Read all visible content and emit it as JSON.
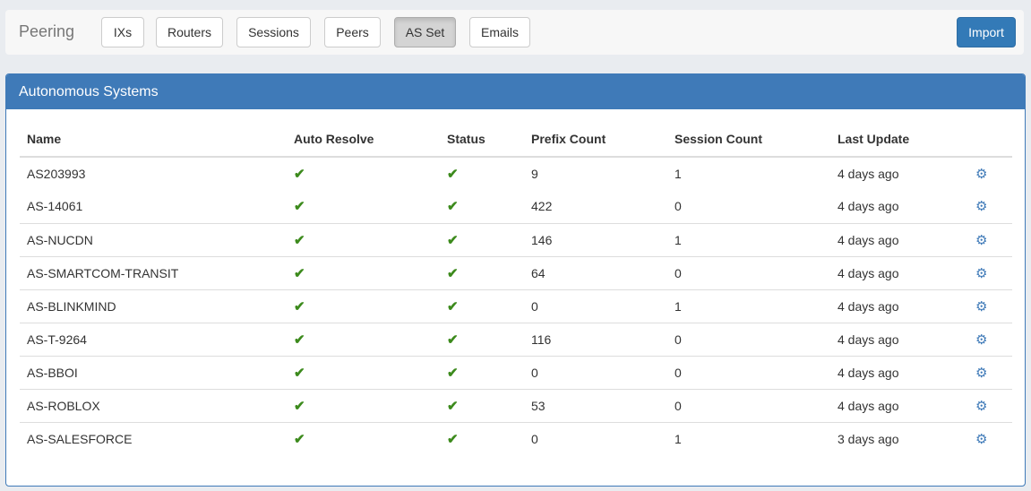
{
  "navbar": {
    "brand": "Peering",
    "buttons": [
      {
        "label": "IXs"
      },
      {
        "label": "Routers"
      },
      {
        "label": "Sessions"
      },
      {
        "label": "Peers"
      },
      {
        "label": "AS Set",
        "active": true
      },
      {
        "label": "Emails"
      }
    ],
    "import_label": "Import"
  },
  "panel": {
    "title": "Autonomous Systems",
    "columns": [
      "Name",
      "Auto Resolve",
      "Status",
      "Prefix Count",
      "Session Count",
      "Last Update"
    ],
    "rows": [
      {
        "name": "AS203993",
        "auto_resolve": true,
        "status": true,
        "prefix_count": "9",
        "session_count": "1",
        "last_update": "4 days ago"
      },
      {
        "name": "AS-14061",
        "auto_resolve": true,
        "status": true,
        "prefix_count": "422",
        "session_count": "0",
        "last_update": "4 days ago"
      },
      {
        "name": "AS-NUCDN",
        "auto_resolve": true,
        "status": true,
        "prefix_count": "146",
        "session_count": "1",
        "last_update": "4 days ago"
      },
      {
        "name": "AS-SMARTCOM-TRANSIT",
        "auto_resolve": true,
        "status": true,
        "prefix_count": "64",
        "session_count": "0",
        "last_update": "4 days ago"
      },
      {
        "name": "AS-BLINKMIND",
        "auto_resolve": true,
        "status": true,
        "prefix_count": "0",
        "session_count": "1",
        "last_update": "4 days ago"
      },
      {
        "name": "AS-T-9264",
        "auto_resolve": true,
        "status": true,
        "prefix_count": "116",
        "session_count": "0",
        "last_update": "4 days ago"
      },
      {
        "name": "AS-BBOI",
        "auto_resolve": true,
        "status": true,
        "prefix_count": "0",
        "session_count": "0",
        "last_update": "4 days ago"
      },
      {
        "name": "AS-ROBLOX",
        "auto_resolve": true,
        "status": true,
        "prefix_count": "53",
        "session_count": "0",
        "last_update": "4 days ago"
      },
      {
        "name": "AS-SALESFORCE",
        "auto_resolve": true,
        "status": true,
        "prefix_count": "0",
        "session_count": "1",
        "last_update": "3 days ago"
      }
    ]
  },
  "icons": {
    "check": "check-icon",
    "gear": "gear-icon"
  },
  "colors": {
    "primary": "#3f7ab8",
    "check": "#3c8a1c"
  }
}
